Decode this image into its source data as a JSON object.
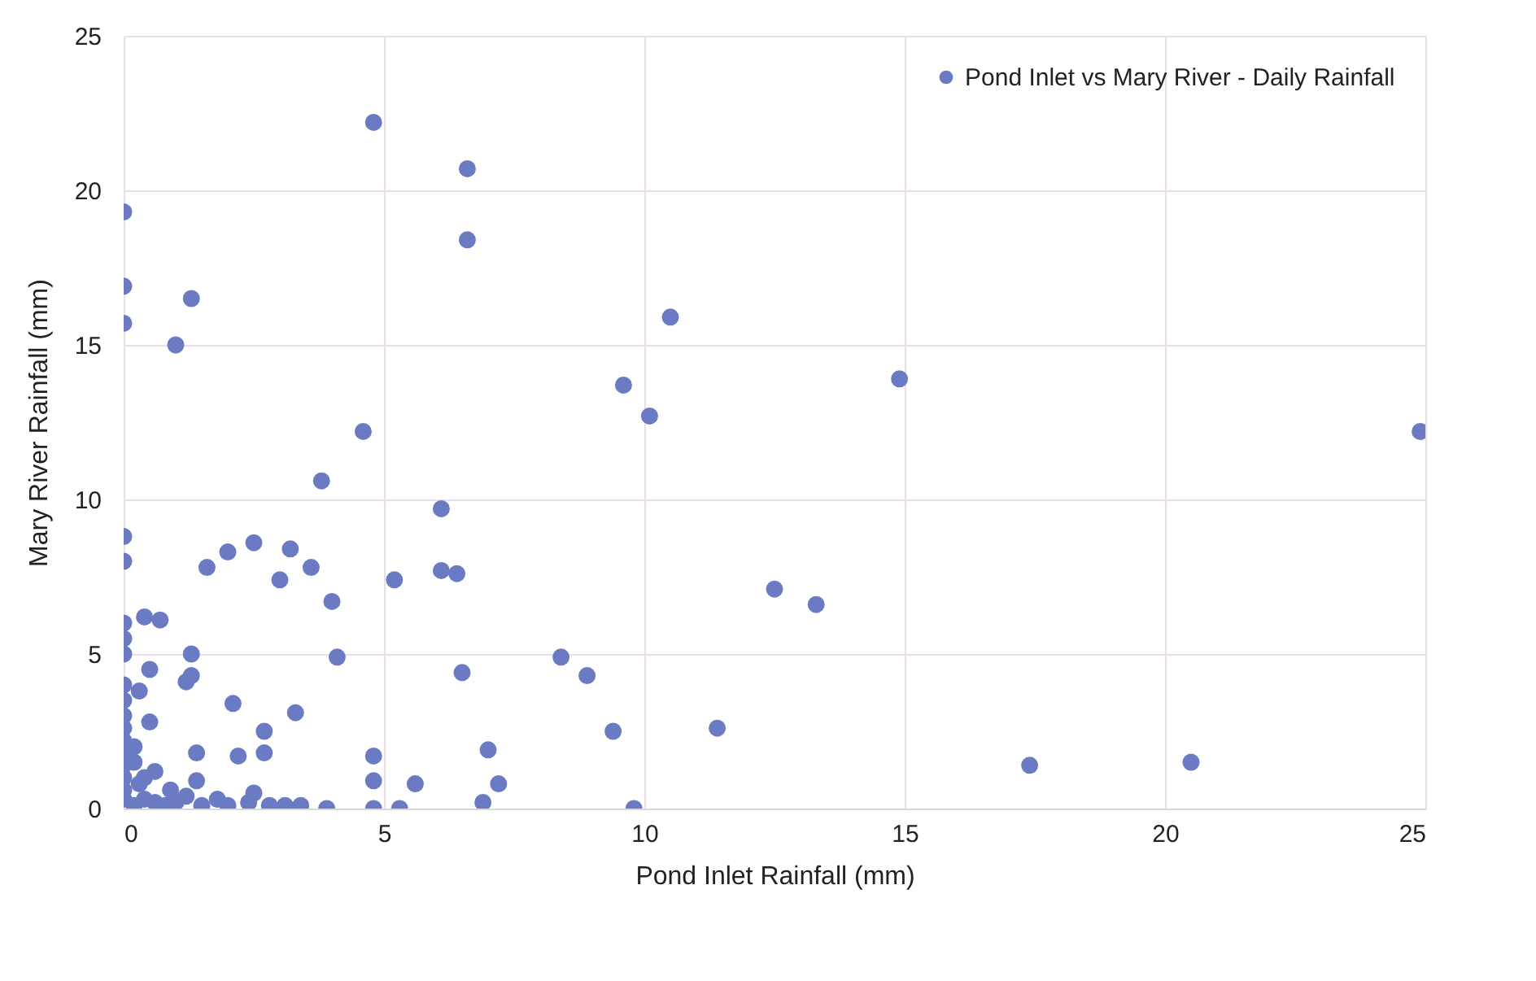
{
  "chart_data": {
    "type": "scatter",
    "xlabel": "Pond Inlet Rainfall (mm)",
    "ylabel": "Mary River Rainfall (mm)",
    "xlim": [
      0,
      25
    ],
    "xticks": [
      0,
      5,
      10,
      15,
      20,
      25
    ],
    "ylim": [
      0,
      25
    ],
    "yticks": [
      0,
      5,
      10,
      15,
      20,
      25
    ],
    "grid": true,
    "legend": "top right",
    "marker": "circle",
    "series": [
      {
        "name": "Pond Inlet vs Mary River - Daily Rainfall",
        "color": "#6a7bc4",
        "x": [
          0,
          0,
          0,
          1.3,
          1.0,
          4.8,
          6.6,
          6.6,
          10.5,
          9.6,
          10.1,
          14.9,
          24.9,
          4.6,
          3.8,
          6.1,
          0,
          0,
          2.5,
          2.0,
          3.2,
          1.6,
          3.6,
          3.0,
          4.0,
          4.1,
          5.2,
          6.1,
          6.4,
          0.4,
          0.7,
          1.3,
          0.5,
          1.2,
          1.3,
          2.1,
          3.3,
          2.7,
          2.7,
          2.2,
          1.4,
          4.8,
          4.8,
          5.6,
          3.9,
          4.8,
          5.3,
          8.4,
          8.9,
          6.5,
          7.0,
          7.2,
          6.9,
          9.4,
          11.4,
          9.8,
          12.5,
          13.3,
          17.4,
          20.5,
          0,
          0,
          0,
          0,
          0,
          0,
          0,
          0,
          0,
          0,
          0,
          0,
          0,
          0.2,
          0.4,
          0.6,
          0.8,
          1.0,
          1.2,
          1.5,
          1.8,
          2.0,
          2.4,
          2.8,
          3.1,
          3.4,
          0.3,
          0.6,
          0.9,
          1.4,
          2.5,
          0.2,
          0.5,
          0.3,
          0.2,
          0.4
        ],
        "values": [
          19.3,
          16.9,
          15.7,
          16.5,
          15.0,
          22.2,
          20.7,
          18.4,
          15.9,
          13.7,
          12.7,
          13.9,
          12.2,
          12.2,
          10.6,
          9.7,
          8.8,
          8.0,
          8.6,
          8.3,
          8.4,
          7.8,
          7.8,
          7.4,
          6.7,
          4.9,
          7.4,
          7.7,
          7.6,
          6.2,
          6.1,
          5.0,
          4.5,
          4.1,
          4.3,
          3.4,
          3.1,
          2.5,
          1.8,
          1.7,
          1.8,
          1.7,
          0.9,
          0.8,
          0,
          0,
          0,
          4.9,
          4.3,
          4.4,
          1.9,
          0.8,
          0.2,
          2.5,
          2.6,
          0,
          7.1,
          6.6,
          1.4,
          1.5,
          0.3,
          0.6,
          1.0,
          1.4,
          1.8,
          2.2,
          2.6,
          3.0,
          3.5,
          4.0,
          5.0,
          5.5,
          6.0,
          0.1,
          0.3,
          0.2,
          0.1,
          0.2,
          0.4,
          0.1,
          0.3,
          0.1,
          0.2,
          0.1,
          0.1,
          0.1,
          0.8,
          1.2,
          0.6,
          0.9,
          0.5,
          2.0,
          2.8,
          3.8,
          1.5,
          1.0
        ]
      }
    ]
  }
}
